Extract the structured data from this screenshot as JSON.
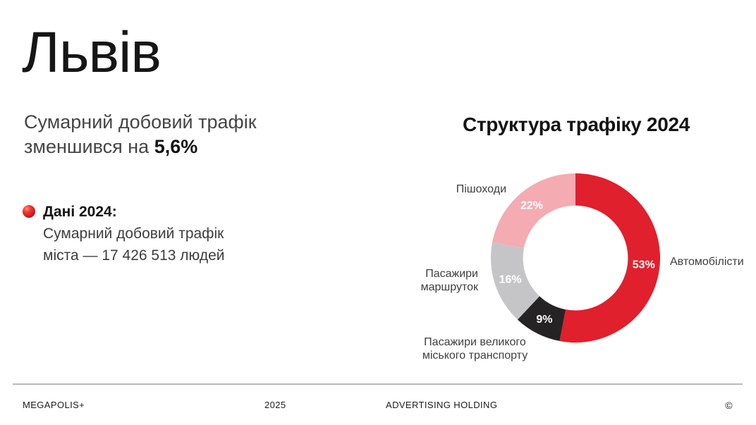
{
  "slide": {
    "title": "Львів",
    "subtitle_line1": "Сумарний добовий трафік",
    "subtitle_line2_prefix": "зменшився на ",
    "subtitle_line2_bold": "5,6%",
    "fact": {
      "bullet_icon": "red-sphere-icon",
      "bullet_color": "#d31a20",
      "heading": "Дані 2024:",
      "line1": "Сумарний добовий трафік",
      "line2": "міста — 17 426 513 людей"
    },
    "footer": {
      "brand": "MEGAPOLIS+",
      "year": "2025",
      "company": "ADVERTISING HOLDING",
      "copyright": "©"
    }
  },
  "chart_data": {
    "type": "pie",
    "variant": "donut",
    "title": "Структура трафіку 2024",
    "unit": "%",
    "start_angle_deg": 0,
    "direction": "clockwise",
    "inner_radius_ratio": 0.62,
    "legend_position": "outside-labels",
    "value_label_color": "#ffffff",
    "segments": [
      {
        "label": "Автомобілісти",
        "value": 53,
        "value_label": "53%",
        "color": "#e0202c"
      },
      {
        "label": "Пасажири великого міського транспорту",
        "value": 9,
        "value_label": "9%",
        "color": "#262324"
      },
      {
        "label": "Пасажири маршруток",
        "value": 16,
        "value_label": "16%",
        "color": "#c5c5c7"
      },
      {
        "label": "Пішоходи",
        "value": 22,
        "value_label": "22%",
        "color": "#f4abb2"
      }
    ]
  }
}
